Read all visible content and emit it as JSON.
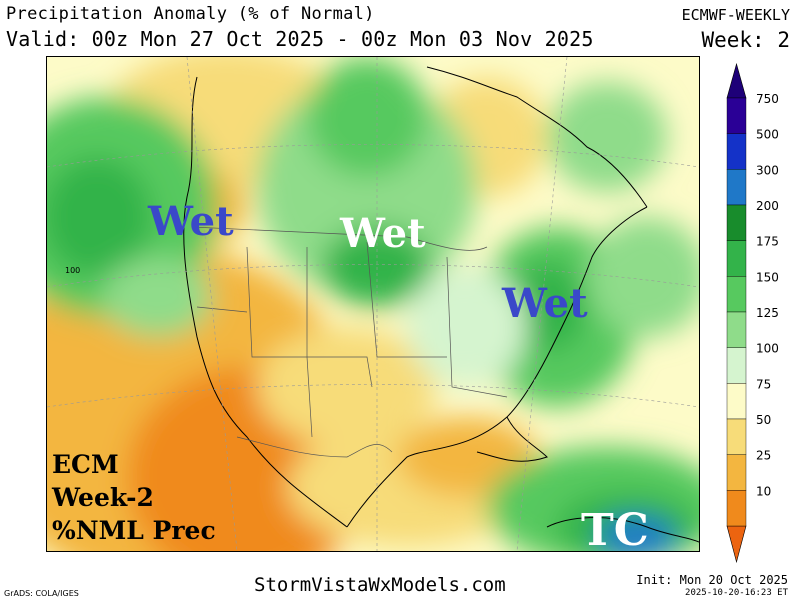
{
  "header": {
    "title": "Precipitation Anomaly (% of Normal)",
    "valid": "Valid: 00z Mon 27 Oct 2025 - 00z Mon 03 Nov 2025",
    "model": "ECMWF-WEEKLY",
    "week": "Week: 2"
  },
  "map": {
    "overlays": {
      "wet_west": "Wet",
      "wet_north": "Wet",
      "wet_east": "Wet",
      "tc": "TC"
    },
    "contour_label": "100",
    "notes": [
      "ECM",
      "Week-2",
      "%NML Prec"
    ]
  },
  "colorbar": {
    "levels": [
      {
        "label": "750",
        "color": "#2a0096"
      },
      {
        "label": "500",
        "color": "#1432c8"
      },
      {
        "label": "300",
        "color": "#1f78c8"
      },
      {
        "label": "200",
        "color": "#188c2c"
      },
      {
        "label": "175",
        "color": "#33b34a"
      },
      {
        "label": "150",
        "color": "#57c95f"
      },
      {
        "label": "125",
        "color": "#8fdc8a"
      },
      {
        "label": "100",
        "color": "#d5f4cf"
      },
      {
        "label": "75",
        "color": "#fdfbc8"
      },
      {
        "label": "50",
        "color": "#f7dc79"
      },
      {
        "label": "25",
        "color": "#f3b640"
      },
      {
        "label": "10",
        "color": "#f08a1c"
      }
    ],
    "top_color": "#1e0078",
    "bottom_color": "#ec6410"
  },
  "footer": {
    "credit": "GrADS: COLA/IGES",
    "site": "StormVistaWxModels.com",
    "init": "Init: Mon 20 Oct 2025",
    "generated": "2025-10-20-16:23 ET"
  }
}
